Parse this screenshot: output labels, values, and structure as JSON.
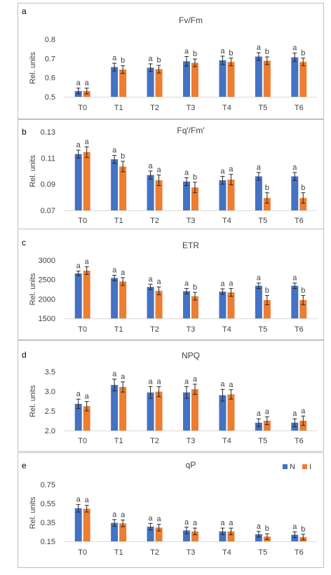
{
  "legend": {
    "items": [
      "N",
      "I"
    ],
    "placement": "top-right of panel e"
  },
  "colors": {
    "N": "#4472C4",
    "I": "#ED7D31",
    "axis": "#d9d9d9",
    "text": "#404040",
    "frame": "#bfbfbf"
  },
  "chart_data": [
    {
      "type": "bar",
      "panel_label": "a",
      "title": "Fv/Fm",
      "xlabel": "",
      "ylabel": "Rel. units",
      "categories": [
        "T0",
        "T1",
        "T2",
        "T3",
        "T4",
        "T5",
        "T6"
      ],
      "ylim": [
        0.5,
        0.8
      ],
      "yticks": [
        0.5,
        0.6,
        0.7,
        0.8
      ],
      "ytick_labels": [
        "0.5",
        "0.6",
        "0.7",
        "0.8"
      ],
      "series": [
        {
          "name": "N",
          "values": [
            0.53,
            0.655,
            0.652,
            0.685,
            0.69,
            0.71,
            0.706
          ],
          "errors": [
            0.015,
            0.02,
            0.02,
            0.025,
            0.022,
            0.02,
            0.022
          ],
          "letters": [
            "a",
            "a",
            "a",
            "a",
            "a",
            "a",
            "a"
          ]
        },
        {
          "name": "I",
          "values": [
            0.53,
            0.642,
            0.644,
            0.677,
            0.682,
            0.688,
            0.682
          ],
          "errors": [
            0.015,
            0.02,
            0.02,
            0.02,
            0.02,
            0.02,
            0.02
          ],
          "letters": [
            "a",
            "b",
            "b",
            "b",
            "b",
            "b",
            "b"
          ]
        }
      ]
    },
    {
      "type": "bar",
      "panel_label": "b",
      "title": "Fq'/Fm'",
      "xlabel": "",
      "ylabel": "Rel. units",
      "categories": [
        "T0",
        "T1",
        "T2",
        "T3",
        "T4",
        "T5",
        "T6"
      ],
      "ylim": [
        0.07,
        0.13
      ],
      "yticks": [
        0.07,
        0.09,
        0.11,
        0.13
      ],
      "ytick_labels": [
        "0.07",
        "0.09",
        "0.11",
        "0.13"
      ],
      "series": [
        {
          "name": "N",
          "values": [
            0.113,
            0.109,
            0.097,
            0.092,
            0.093,
            0.096,
            0.096
          ],
          "errors": [
            0.003,
            0.003,
            0.003,
            0.003,
            0.003,
            0.003,
            0.003
          ],
          "letters": [
            "a",
            "a",
            "a",
            "a",
            "a",
            "a",
            "a"
          ]
        },
        {
          "name": "I",
          "values": [
            0.1145,
            0.1035,
            0.093,
            0.0875,
            0.0935,
            0.0795,
            0.0795
          ],
          "errors": [
            0.004,
            0.004,
            0.004,
            0.004,
            0.004,
            0.004,
            0.004
          ],
          "letters": [
            "a",
            "b",
            "a",
            "b",
            "a",
            "b",
            "b"
          ]
        }
      ]
    },
    {
      "type": "bar",
      "panel_label": "c",
      "title": "ETR",
      "xlabel": "",
      "ylabel": "Rel. units",
      "categories": [
        "T0",
        "T1",
        "T2",
        "T3",
        "T4",
        "T5",
        "T6"
      ],
      "ylim": [
        1500,
        3000
      ],
      "yticks": [
        1500,
        2000,
        2500,
        3000
      ],
      "ytick_labels": [
        "1500",
        "2000",
        "2500",
        "3000"
      ],
      "series": [
        {
          "name": "N",
          "values": [
            2660,
            2540,
            2310,
            2200,
            2190,
            2340,
            2340
          ],
          "errors": [
            60,
            70,
            70,
            70,
            70,
            70,
            70
          ],
          "letters": [
            "a",
            "a",
            "a",
            "a",
            "a",
            "a",
            "a"
          ]
        },
        {
          "name": "I",
          "values": [
            2730,
            2450,
            2210,
            2070,
            2170,
            1970,
            1970
          ],
          "errors": [
            100,
            100,
            100,
            100,
            100,
            120,
            120
          ],
          "letters": [
            "a",
            "a",
            "a",
            "b",
            "a",
            "b",
            "b"
          ]
        }
      ]
    },
    {
      "type": "bar",
      "panel_label": "d",
      "title": "NPQ",
      "xlabel": "",
      "ylabel": "Rel. units",
      "categories": [
        "T0",
        "T1",
        "T2",
        "T3",
        "T4",
        "T5",
        "T6"
      ],
      "ylim": [
        2.0,
        3.5
      ],
      "yticks": [
        2.0,
        2.5,
        3.0,
        3.5
      ],
      "ytick_labels": [
        "2.0",
        "2.5",
        "3.0",
        "3.5"
      ],
      "series": [
        {
          "name": "N",
          "values": [
            2.68,
            3.16,
            2.97,
            2.97,
            2.9,
            2.2,
            2.2
          ],
          "errors": [
            0.12,
            0.15,
            0.15,
            0.15,
            0.15,
            0.1,
            0.1
          ],
          "letters": [
            "a",
            "a",
            "a",
            "a",
            "a",
            "a",
            "a"
          ]
        },
        {
          "name": "I",
          "values": [
            2.62,
            3.11,
            2.99,
            3.05,
            2.92,
            2.25,
            2.25
          ],
          "errors": [
            0.12,
            0.13,
            0.13,
            0.13,
            0.12,
            0.1,
            0.12
          ],
          "letters": [
            "a",
            "a",
            "a",
            "a",
            "a",
            "a",
            "a"
          ]
        }
      ]
    },
    {
      "type": "bar",
      "panel_label": "e",
      "title": "qP",
      "xlabel": "",
      "ylabel": "Rel. units",
      "categories": [
        "T0",
        "T1",
        "T2",
        "T3",
        "T4",
        "T5",
        "T6"
      ],
      "ylim": [
        0.15,
        0.75
      ],
      "yticks": [
        0.15,
        0.35,
        0.55,
        0.75
      ],
      "ytick_labels": [
        "0.15",
        "0.35",
        "0.55",
        "0.75"
      ],
      "series": [
        {
          "name": "N",
          "values": [
            0.5,
            0.345,
            0.305,
            0.265,
            0.255,
            0.225,
            0.22
          ],
          "errors": [
            0.04,
            0.035,
            0.035,
            0.035,
            0.035,
            0.03,
            0.03
          ],
          "letters": [
            "a",
            "a",
            "a",
            "a",
            "a",
            "a",
            "a"
          ]
        },
        {
          "name": "I",
          "values": [
            0.495,
            0.34,
            0.295,
            0.255,
            0.255,
            0.2,
            0.195
          ],
          "errors": [
            0.035,
            0.035,
            0.035,
            0.035,
            0.035,
            0.03,
            0.03
          ],
          "letters": [
            "a",
            "a",
            "a",
            "a",
            "a",
            "b",
            "b"
          ]
        }
      ]
    }
  ]
}
